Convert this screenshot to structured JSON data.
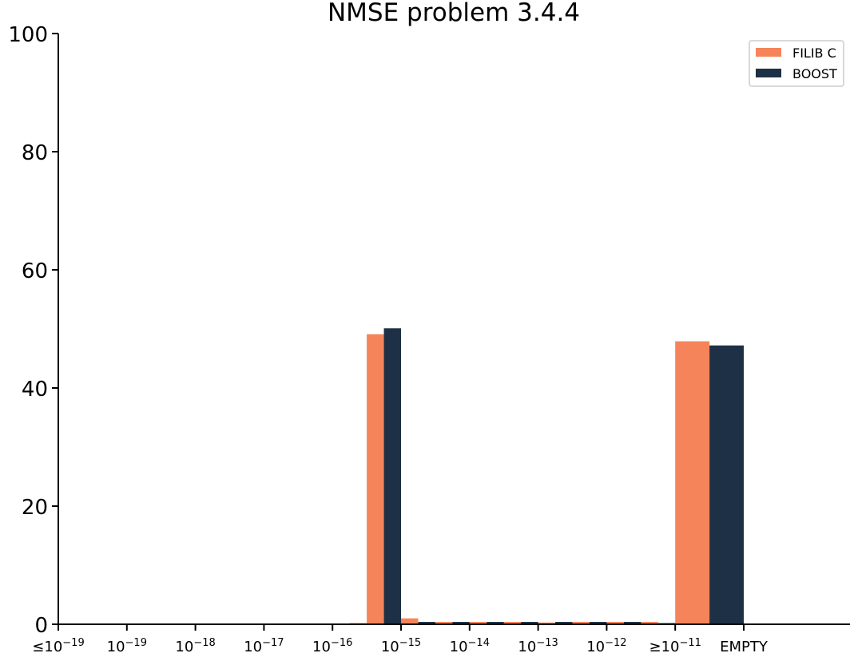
{
  "chart_data": {
    "type": "bar",
    "title": "NMSE problem 3.4.4",
    "xlabel": "",
    "ylabel": "",
    "ylim": [
      0,
      100
    ],
    "yticks": [
      0,
      20,
      40,
      60,
      80,
      100
    ],
    "xticks": [
      {
        "pre": "≤10",
        "exp": "−19",
        "x": 0
      },
      {
        "pre": "10",
        "exp": "−19",
        "x": 1
      },
      {
        "pre": "10",
        "exp": "−18",
        "x": 2
      },
      {
        "pre": "10",
        "exp": "−17",
        "x": 3
      },
      {
        "pre": "10",
        "exp": "−16",
        "x": 4
      },
      {
        "pre": "10",
        "exp": "−15",
        "x": 5
      },
      {
        "pre": "10",
        "exp": "−14",
        "x": 6
      },
      {
        "pre": "10",
        "exp": "−13",
        "x": 7
      },
      {
        "pre": "10",
        "exp": "−12",
        "x": 8
      },
      {
        "pre": "≥10",
        "exp": "−11",
        "x": 9
      },
      {
        "pre": "EMPTY",
        "exp": "",
        "x": 10
      }
    ],
    "legend_position": "top-right",
    "xlim": [
      0,
      11.55
    ],
    "series": [
      {
        "name": "FILIB C",
        "color": "#f5845a",
        "bars": [
          {
            "x": 4.0,
            "width": 0.25,
            "value": 0
          },
          {
            "x": 4.25,
            "width": 0.25,
            "value": 0.2
          },
          {
            "x": 4.5,
            "width": 0.25,
            "value": 49.1
          },
          {
            "x": 5.0,
            "width": 0.25,
            "value": 1.0
          },
          {
            "x": 5.5,
            "width": 0.25,
            "value": 0.4
          },
          {
            "x": 6.0,
            "width": 0.25,
            "value": 0.4
          },
          {
            "x": 6.5,
            "width": 0.25,
            "value": 0.4
          },
          {
            "x": 7.0,
            "width": 0.25,
            "value": 0.3
          },
          {
            "x": 7.5,
            "width": 0.25,
            "value": 0.4
          },
          {
            "x": 8.0,
            "width": 0.25,
            "value": 0.4
          },
          {
            "x": 8.5,
            "width": 0.25,
            "value": 0.4
          },
          {
            "x": 9.0,
            "width": 0.5,
            "value": 47.9
          }
        ]
      },
      {
        "name": "BOOST",
        "color": "#1e3045",
        "bars": [
          {
            "x": 4.75,
            "width": 0.25,
            "value": 50.1
          },
          {
            "x": 5.25,
            "width": 0.25,
            "value": 0.4
          },
          {
            "x": 5.75,
            "width": 0.25,
            "value": 0.4
          },
          {
            "x": 6.25,
            "width": 0.25,
            "value": 0.4
          },
          {
            "x": 6.75,
            "width": 0.25,
            "value": 0.4
          },
          {
            "x": 7.25,
            "width": 0.25,
            "value": 0.4
          },
          {
            "x": 7.75,
            "width": 0.25,
            "value": 0.4
          },
          {
            "x": 8.25,
            "width": 0.25,
            "value": 0.4
          },
          {
            "x": 8.75,
            "width": 0.25,
            "value": 0.2
          },
          {
            "x": 9.5,
            "width": 0.5,
            "value": 47.2
          }
        ]
      }
    ]
  }
}
